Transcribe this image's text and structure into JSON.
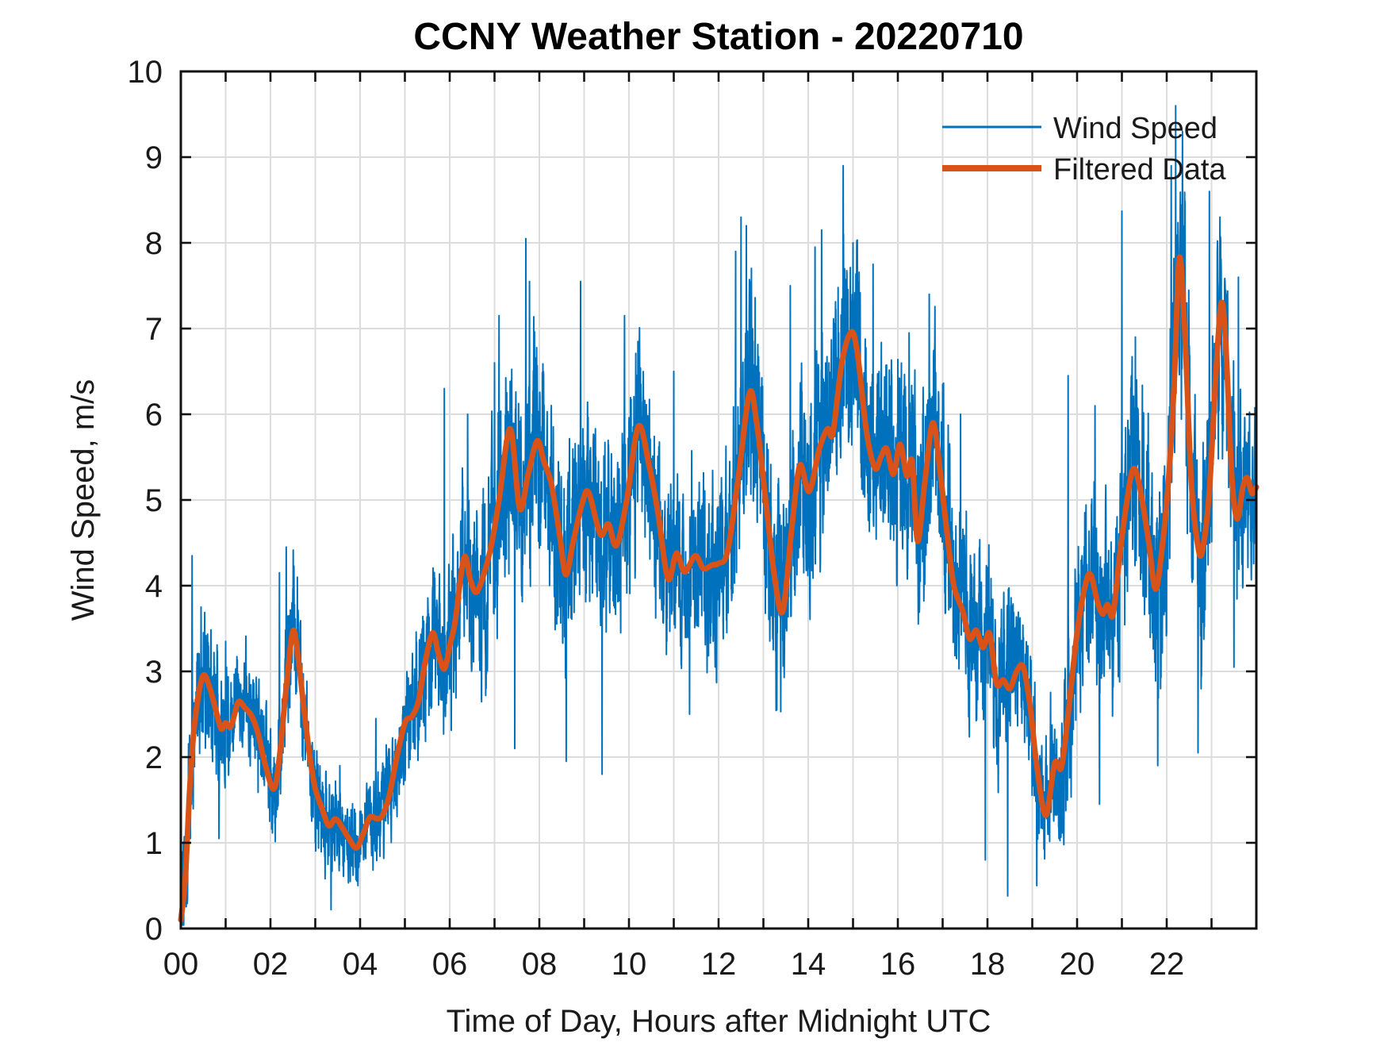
{
  "figure": {
    "title": "CCNY Weather Station - 20220710"
  },
  "chart_data": {
    "type": "line",
    "title": "CCNY Weather Station - 20220710",
    "xlabel": "Time of Day, Hours after Midnight UTC",
    "ylabel": "Wind Speed, m/s",
    "xlim": [
      0,
      24
    ],
    "ylim": [
      0,
      10
    ],
    "grid": {
      "on": true,
      "x_every_hours": 1,
      "y_every_units": 1,
      "color": "#dcdcdc"
    },
    "xticks": {
      "labeled_hours": [
        0,
        2,
        4,
        6,
        8,
        10,
        12,
        14,
        16,
        18,
        20,
        22
      ],
      "labels": [
        "00",
        "02",
        "04",
        "06",
        "08",
        "10",
        "12",
        "14",
        "16",
        "18",
        "20",
        "22"
      ],
      "minor_every_hours": 1
    },
    "yticks": {
      "values": [
        0,
        1,
        2,
        3,
        4,
        5,
        6,
        7,
        8,
        9,
        10
      ],
      "labels": [
        "0",
        "1",
        "2",
        "3",
        "4",
        "5",
        "6",
        "7",
        "8",
        "9",
        "10"
      ]
    },
    "legend": [
      {
        "label": "Wind Speed",
        "color": "#0072BD",
        "line_width": 3
      },
      {
        "label": "Filtered Data",
        "color": "#D95319",
        "line_width": 8
      }
    ],
    "series": [
      {
        "name": "Wind Speed",
        "color": "#0072BD",
        "style": "noisy-raw",
        "generation": {
          "seed": 20220710,
          "dt_hours": 0.004,
          "envelope": [
            [
              0,
              0.85
            ],
            [
              0.5,
              1.0
            ],
            [
              1.1,
              0.8
            ],
            [
              1.9,
              0.75
            ],
            [
              2.5,
              1.0
            ],
            [
              3.2,
              0.7
            ],
            [
              4.0,
              0.55
            ],
            [
              4.7,
              0.7
            ],
            [
              5.5,
              1.05
            ],
            [
              6.2,
              1.25
            ],
            [
              7.0,
              1.5
            ],
            [
              7.6,
              1.6
            ],
            [
              8.5,
              1.5
            ],
            [
              9.5,
              1.4
            ],
            [
              10.5,
              1.35
            ],
            [
              11.5,
              1.25
            ],
            [
              12.2,
              1.4
            ],
            [
              12.7,
              1.6
            ],
            [
              13.5,
              1.45
            ],
            [
              14.2,
              1.55
            ],
            [
              14.9,
              1.7
            ],
            [
              15.7,
              1.55
            ],
            [
              16.8,
              1.5
            ],
            [
              17.4,
              1.3
            ],
            [
              18.0,
              1.15
            ],
            [
              18.7,
              1.1
            ],
            [
              19.3,
              0.95
            ],
            [
              19.9,
              1.25
            ],
            [
              20.6,
              1.35
            ],
            [
              21.2,
              1.55
            ],
            [
              22.0,
              1.7
            ],
            [
              22.4,
              1.8
            ],
            [
              23.0,
              1.65
            ],
            [
              23.5,
              1.55
            ],
            [
              24,
              1.3
            ]
          ],
          "notable_extremes": [
            [
              0.25,
              4.35
            ],
            [
              0.45,
              3.75
            ],
            [
              0.85,
              1.05
            ],
            [
              1.0,
              3.35
            ],
            [
              2.2,
              4.15
            ],
            [
              2.35,
              4.45
            ],
            [
              2.6,
              4.1
            ],
            [
              3.0,
              1.0
            ],
            [
              3.35,
              0.22
            ],
            [
              3.55,
              1.9
            ],
            [
              3.95,
              0.5
            ],
            [
              4.35,
              2.45
            ],
            [
              5.88,
              6.3
            ],
            [
              6.4,
              6.0
            ],
            [
              7.0,
              6.6
            ],
            [
              7.1,
              7.15
            ],
            [
              7.45,
              2.1
            ],
            [
              7.7,
              8.05
            ],
            [
              7.78,
              7.55
            ],
            [
              8.6,
              1.95
            ],
            [
              8.92,
              7.55
            ],
            [
              9.4,
              1.8
            ],
            [
              9.9,
              7.15
            ],
            [
              10.2,
              6.85
            ],
            [
              11.0,
              6.5
            ],
            [
              11.35,
              2.5
            ],
            [
              12.38,
              7.9
            ],
            [
              12.5,
              8.3
            ],
            [
              12.62,
              8.2
            ],
            [
              13.3,
              2.55
            ],
            [
              13.6,
              7.5
            ],
            [
              14.15,
              7.95
            ],
            [
              14.3,
              8.15
            ],
            [
              14.78,
              8.9
            ],
            [
              15.0,
              8.0
            ],
            [
              15.45,
              7.75
            ],
            [
              16.25,
              6.95
            ],
            [
              16.7,
              7.4
            ],
            [
              17.4,
              6.0
            ],
            [
              17.95,
              0.8
            ],
            [
              18.45,
              0.38
            ],
            [
              19.1,
              0.5
            ],
            [
              19.8,
              6.45
            ],
            [
              20.4,
              6.1
            ],
            [
              20.5,
              1.45
            ],
            [
              21.0,
              8.37
            ],
            [
              21.3,
              6.9
            ],
            [
              21.8,
              1.9
            ],
            [
              22.1,
              8.9
            ],
            [
              22.2,
              9.6
            ],
            [
              22.35,
              9.3
            ],
            [
              22.7,
              2.05
            ],
            [
              22.95,
              8.6
            ],
            [
              23.3,
              7.55
            ],
            [
              23.5,
              3.05
            ],
            [
              23.6,
              7.6
            ]
          ]
        }
      },
      {
        "name": "Filtered Data",
        "color": "#D95319",
        "style": "smooth",
        "points": [
          [
            0,
            0.1
          ],
          [
            0.1,
            0.6
          ],
          [
            0.2,
            1.65
          ],
          [
            0.3,
            2.35
          ],
          [
            0.42,
            2.8
          ],
          [
            0.52,
            2.96
          ],
          [
            0.65,
            2.8
          ],
          [
            0.78,
            2.55
          ],
          [
            0.9,
            2.33
          ],
          [
            1.0,
            2.4
          ],
          [
            1.12,
            2.36
          ],
          [
            1.28,
            2.64
          ],
          [
            1.42,
            2.58
          ],
          [
            1.58,
            2.48
          ],
          [
            1.72,
            2.28
          ],
          [
            1.88,
            1.92
          ],
          [
            2.07,
            1.63
          ],
          [
            2.2,
            2.0
          ],
          [
            2.35,
            2.8
          ],
          [
            2.5,
            3.47
          ],
          [
            2.62,
            3.15
          ],
          [
            2.75,
            2.55
          ],
          [
            2.88,
            2.0
          ],
          [
            3.0,
            1.63
          ],
          [
            3.15,
            1.4
          ],
          [
            3.3,
            1.2
          ],
          [
            3.45,
            1.28
          ],
          [
            3.6,
            1.18
          ],
          [
            3.75,
            1.05
          ],
          [
            3.92,
            0.94
          ],
          [
            4.08,
            1.12
          ],
          [
            4.22,
            1.3
          ],
          [
            4.38,
            1.28
          ],
          [
            4.5,
            1.32
          ],
          [
            4.65,
            1.55
          ],
          [
            4.8,
            1.95
          ],
          [
            5.0,
            2.4
          ],
          [
            5.15,
            2.47
          ],
          [
            5.3,
            2.65
          ],
          [
            5.45,
            3.1
          ],
          [
            5.62,
            3.45
          ],
          [
            5.75,
            3.2
          ],
          [
            5.88,
            3.03
          ],
          [
            6.0,
            3.3
          ],
          [
            6.12,
            3.58
          ],
          [
            6.32,
            4.33
          ],
          [
            6.47,
            4.05
          ],
          [
            6.62,
            3.94
          ],
          [
            6.9,
            4.4
          ],
          [
            7.1,
            5.0
          ],
          [
            7.35,
            5.83
          ],
          [
            7.56,
            4.9
          ],
          [
            7.75,
            5.3
          ],
          [
            7.95,
            5.69
          ],
          [
            8.1,
            5.45
          ],
          [
            8.27,
            5.18
          ],
          [
            8.45,
            4.6
          ],
          [
            8.59,
            4.13
          ],
          [
            8.75,
            4.5
          ],
          [
            8.95,
            4.95
          ],
          [
            9.1,
            5.09
          ],
          [
            9.36,
            4.6
          ],
          [
            9.54,
            4.72
          ],
          [
            9.72,
            4.47
          ],
          [
            9.95,
            5.0
          ],
          [
            10.21,
            5.86
          ],
          [
            10.45,
            5.4
          ],
          [
            10.65,
            4.84
          ],
          [
            10.87,
            4.08
          ],
          [
            11.06,
            4.38
          ],
          [
            11.24,
            4.16
          ],
          [
            11.48,
            4.35
          ],
          [
            11.66,
            4.2
          ],
          [
            11.85,
            4.24
          ],
          [
            12.0,
            4.26
          ],
          [
            12.2,
            4.4
          ],
          [
            12.45,
            5.3
          ],
          [
            12.69,
            6.25
          ],
          [
            12.85,
            5.9
          ],
          [
            13.05,
            5.0
          ],
          [
            13.25,
            4.1
          ],
          [
            13.43,
            3.7
          ],
          [
            13.62,
            4.6
          ],
          [
            13.81,
            5.4
          ],
          [
            14.02,
            5.1
          ],
          [
            14.25,
            5.6
          ],
          [
            14.43,
            5.83
          ],
          [
            14.55,
            5.78
          ],
          [
            14.75,
            6.6
          ],
          [
            14.96,
            6.96
          ],
          [
            15.1,
            6.7
          ],
          [
            15.3,
            5.8
          ],
          [
            15.49,
            5.37
          ],
          [
            15.62,
            5.5
          ],
          [
            15.75,
            5.6
          ],
          [
            15.9,
            5.3
          ],
          [
            16.05,
            5.65
          ],
          [
            16.2,
            5.28
          ],
          [
            16.32,
            5.45
          ],
          [
            16.44,
            4.52
          ],
          [
            16.6,
            5.2
          ],
          [
            16.78,
            5.9
          ],
          [
            16.95,
            5.3
          ],
          [
            17.1,
            4.6
          ],
          [
            17.25,
            4.0
          ],
          [
            17.45,
            3.7
          ],
          [
            17.6,
            3.38
          ],
          [
            17.75,
            3.48
          ],
          [
            17.9,
            3.28
          ],
          [
            18.05,
            3.44
          ],
          [
            18.2,
            2.86
          ],
          [
            18.35,
            2.9
          ],
          [
            18.5,
            2.8
          ],
          [
            18.65,
            3.0
          ],
          [
            18.8,
            3.05
          ],
          [
            18.95,
            2.6
          ],
          [
            19.1,
            1.9
          ],
          [
            19.3,
            1.32
          ],
          [
            19.5,
            1.93
          ],
          [
            19.65,
            1.88
          ],
          [
            19.8,
            2.5
          ],
          [
            20.0,
            3.45
          ],
          [
            20.18,
            4.0
          ],
          [
            20.3,
            4.13
          ],
          [
            20.45,
            3.82
          ],
          [
            20.57,
            3.67
          ],
          [
            20.68,
            3.78
          ],
          [
            20.8,
            3.66
          ],
          [
            20.95,
            4.35
          ],
          [
            21.1,
            4.95
          ],
          [
            21.25,
            5.36
          ],
          [
            21.4,
            5.15
          ],
          [
            21.6,
            4.5
          ],
          [
            21.75,
            3.96
          ],
          [
            21.9,
            4.45
          ],
          [
            22.05,
            5.3
          ],
          [
            22.17,
            6.4
          ],
          [
            22.28,
            7.82
          ],
          [
            22.4,
            7.0
          ],
          [
            22.55,
            5.2
          ],
          [
            22.7,
            4.45
          ],
          [
            22.8,
            4.42
          ],
          [
            22.95,
            5.1
          ],
          [
            23.1,
            6.5
          ],
          [
            23.22,
            7.3
          ],
          [
            23.32,
            6.8
          ],
          [
            23.45,
            5.3
          ],
          [
            23.57,
            4.78
          ],
          [
            23.7,
            5.15
          ],
          [
            23.8,
            5.26
          ],
          [
            23.9,
            5.08
          ],
          [
            24.0,
            5.15
          ]
        ]
      }
    ],
    "colors": {
      "axis": "#111111",
      "grid": "#dcdcdc",
      "background": "#ffffff"
    }
  }
}
